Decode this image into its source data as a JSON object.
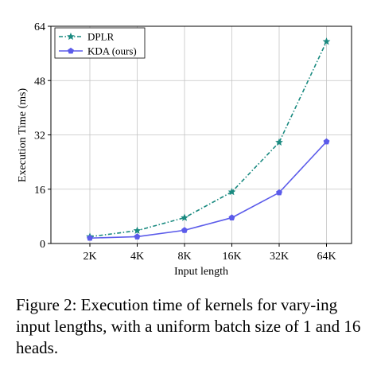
{
  "chart_data": {
    "type": "line",
    "categories": [
      "2K",
      "4K",
      "8K",
      "16K",
      "32K",
      "64K"
    ],
    "series": [
      {
        "name": "DPLR",
        "values": [
          2.0,
          3.8,
          7.6,
          15.2,
          29.8,
          59.5
        ],
        "color": "#1a8a80",
        "style": "dash-dot",
        "marker": "star"
      },
      {
        "name": "KDA (ours)",
        "values": [
          1.6,
          2.0,
          3.9,
          7.6,
          15.0,
          30.0
        ],
        "color": "#5b5bea",
        "style": "solid",
        "marker": "pentagon"
      }
    ],
    "xlabel": "Input length",
    "ylabel": "Execution Time (ms)",
    "ylim": [
      0,
      64
    ],
    "yticks": [
      0,
      16,
      32,
      48,
      64
    ],
    "grid": true,
    "legend": "top-left"
  },
  "caption": "Figure 2: Execution time of kernels for vary-ing input lengths, with a uniform batch size of 1 and 16 heads."
}
